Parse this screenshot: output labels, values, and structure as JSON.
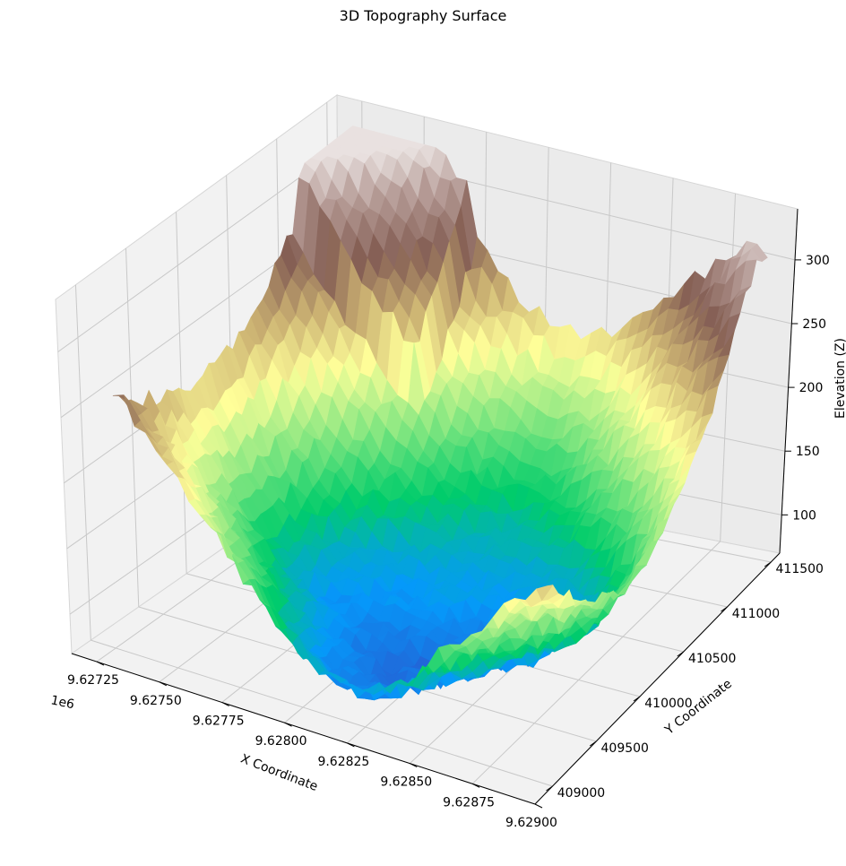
{
  "chart_data": {
    "type": "surface3d",
    "title": "3D Topography Surface",
    "colormap": "terrain",
    "grid": true,
    "x_axis": {
      "label": "X Coordinate",
      "offset_text": "1e6",
      "ticks": [
        "9.62725",
        "9.62750",
        "9.62775",
        "9.62800",
        "9.62825",
        "9.62850",
        "9.62875",
        "9.62900"
      ],
      "range": [
        9.62715,
        9.629
      ]
    },
    "y_axis": {
      "label": "Y Coordinate",
      "ticks": [
        "409000",
        "409500",
        "410000",
        "410500",
        "411000",
        "411500"
      ],
      "range": [
        408800,
        411600
      ]
    },
    "z_axis": {
      "label": "Elevation (Z)",
      "ticks": [
        "100",
        "150",
        "200",
        "250",
        "300"
      ],
      "range": [
        70,
        340
      ]
    },
    "surface_description": "bowl-shaped terrain: rim elevations ~200-320, basin minimum ~70"
  }
}
